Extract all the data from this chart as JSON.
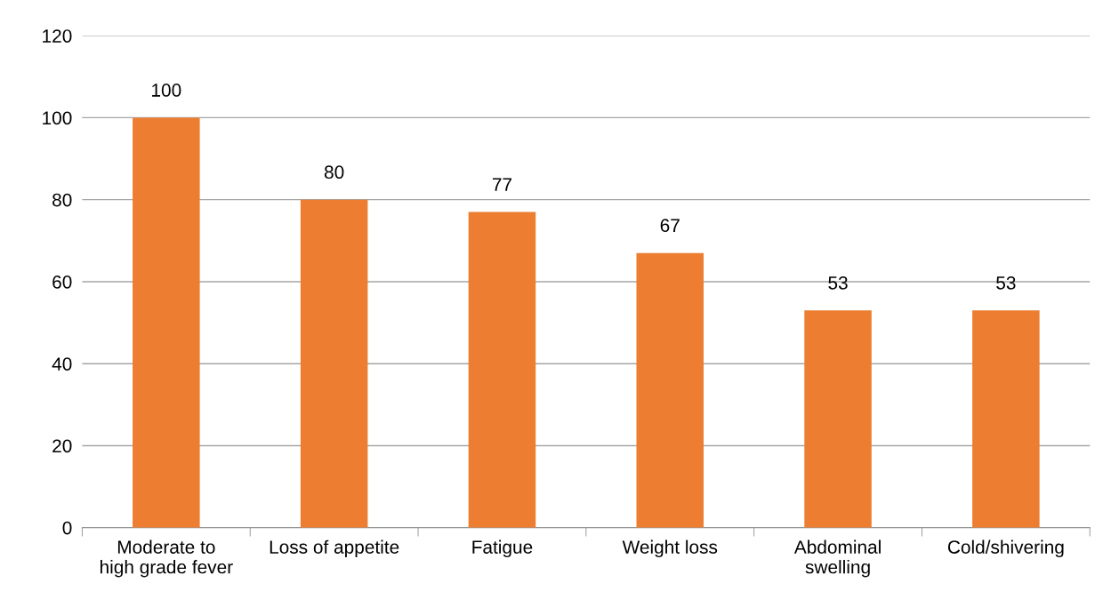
{
  "chart_data": {
    "type": "bar",
    "categories": [
      "Moderate to\nhigh grade fever",
      "Loss of appetite",
      "Fatigue",
      "Weight loss",
      "Abdominal\nswelling",
      "Cold/shivering"
    ],
    "values": [
      100,
      80,
      77,
      67,
      53,
      53
    ],
    "color": "#ed7d31",
    "ylim": [
      0,
      120
    ],
    "yticks": [
      0,
      20,
      40,
      60,
      80,
      100,
      120
    ],
    "grid": "y",
    "data_labels": true
  }
}
